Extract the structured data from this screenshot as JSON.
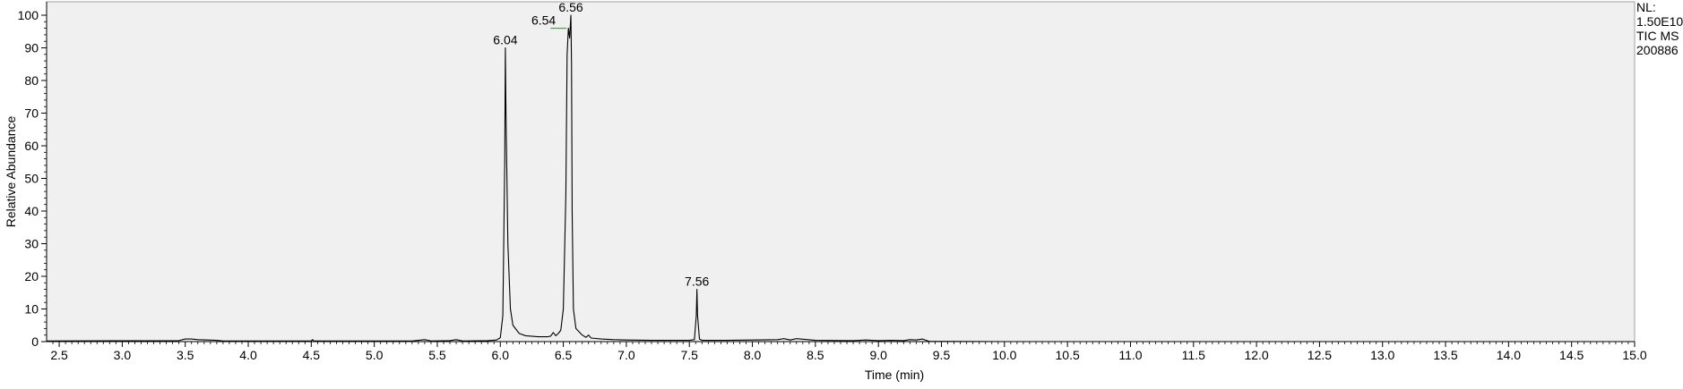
{
  "chart_data": {
    "type": "line",
    "title": "",
    "xlabel": "Time (min)",
    "ylabel": "Relative Abundance",
    "xlim": [
      2.4,
      15.0
    ],
    "ylim": [
      0,
      100
    ],
    "grid": false,
    "x_ticks": [
      "2.5",
      "3.0",
      "3.5",
      "4.0",
      "4.5",
      "5.0",
      "5.5",
      "6.0",
      "6.5",
      "7.0",
      "7.5",
      "8.0",
      "8.5",
      "9.0",
      "9.5",
      "10.0",
      "10.5",
      "11.0",
      "11.5",
      "12.0",
      "12.5",
      "13.0",
      "13.5",
      "14.0",
      "14.5",
      "15.0"
    ],
    "y_ticks": [
      "0",
      "10",
      "20",
      "30",
      "40",
      "50",
      "60",
      "70",
      "80",
      "90",
      "100"
    ],
    "info_lines": [
      "NL:",
      "1.50E10",
      "TIC  MS",
      "200886"
    ],
    "annotations": [
      {
        "label": "6.04",
        "x": 6.04,
        "y": 90
      },
      {
        "label": "6.54",
        "x": 6.54,
        "y": 96
      },
      {
        "label": "6.56",
        "x": 6.56,
        "y": 100
      },
      {
        "label": "7.56",
        "x": 7.56,
        "y": 16
      }
    ],
    "series": [
      {
        "x": [
          2.4,
          3.45,
          3.5,
          3.55,
          3.6,
          3.75,
          3.8,
          4.5,
          4.51,
          4.52,
          5.3,
          5.4,
          5.45,
          5.6,
          5.65,
          5.7,
          5.9,
          5.97,
          6.0,
          6.02,
          6.035,
          6.04,
          6.045,
          6.06,
          6.08,
          6.1,
          6.15,
          6.2,
          6.3,
          6.38,
          6.4,
          6.42,
          6.44,
          6.46,
          6.48,
          6.5,
          6.52,
          6.53,
          6.54,
          6.55,
          6.56,
          6.565,
          6.57,
          6.58,
          6.6,
          6.65,
          6.68,
          6.7,
          6.72,
          6.8,
          6.9,
          7.0,
          7.2,
          7.4,
          7.5,
          7.54,
          7.555,
          7.56,
          7.565,
          7.58,
          7.6,
          7.8,
          8.0,
          8.2,
          8.25,
          8.3,
          8.35,
          8.5,
          8.8,
          8.9,
          9.0,
          9.1,
          9.2,
          9.25,
          9.3,
          9.35,
          9.4,
          10.0,
          11.0,
          12.0,
          13.0,
          14.0,
          15.0
        ],
        "y": [
          0.2,
          0.3,
          0.8,
          0.8,
          0.6,
          0.4,
          0.2,
          0.2,
          0.6,
          0.2,
          0.2,
          0.6,
          0.2,
          0.3,
          0.6,
          0.2,
          0.3,
          0.5,
          1.2,
          8,
          55,
          90,
          70,
          30,
          10,
          5,
          2.5,
          1.8,
          1.5,
          1.5,
          1.7,
          2.8,
          1.8,
          2.5,
          3.5,
          10,
          45,
          88,
          96,
          93,
          100,
          85,
          40,
          10,
          4,
          2,
          1.3,
          2,
          1.1,
          0.8,
          0.6,
          0.5,
          0.4,
          0.4,
          0.4,
          0.6,
          8,
          16,
          8,
          0.8,
          0.4,
          0.4,
          0.5,
          0.6,
          0.9,
          0.5,
          0.9,
          0.4,
          0.3,
          0.5,
          0.3,
          0.4,
          0.3,
          0.6,
          0.5,
          0.8,
          0.1,
          0.0,
          0.0,
          0.0,
          0.0,
          0.0,
          0.0
        ]
      }
    ]
  }
}
